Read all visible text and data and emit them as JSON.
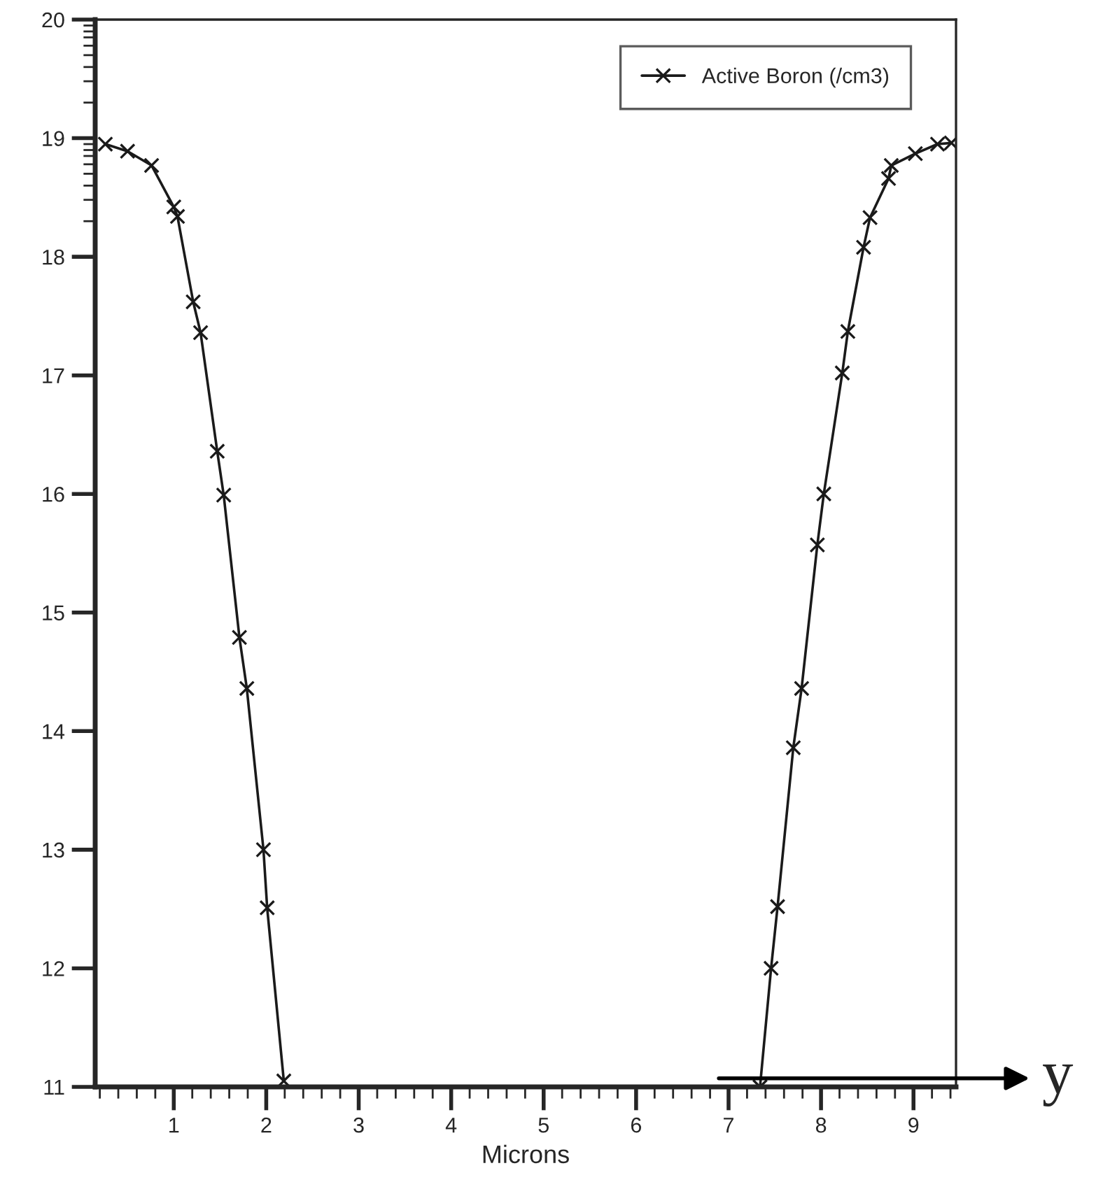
{
  "chart_data": {
    "type": "line",
    "xlabel": "Microns",
    "xlim": [
      0.15,
      9.46
    ],
    "ylim": [
      11,
      20
    ],
    "xticks": [
      {
        "value": 0.2,
        "label": null
      },
      {
        "value": 0.4,
        "label": null
      },
      {
        "value": 0.6,
        "label": null
      },
      {
        "value": 0.8,
        "label": null
      },
      1,
      {
        "value": 1.2,
        "label": null
      },
      {
        "value": 1.4,
        "label": null
      },
      {
        "value": 1.6,
        "label": null
      },
      {
        "value": 1.8,
        "label": null
      },
      2,
      {
        "value": 2.2,
        "label": null
      },
      {
        "value": 2.4,
        "label": null
      },
      {
        "value": 2.6,
        "label": null
      },
      {
        "value": 2.8,
        "label": null
      },
      3,
      {
        "value": 3.2,
        "label": null
      },
      {
        "value": 3.4,
        "label": null
      },
      {
        "value": 3.6,
        "label": null
      },
      {
        "value": 3.8,
        "label": null
      },
      4,
      {
        "value": 4.2,
        "label": null
      },
      {
        "value": 4.4,
        "label": null
      },
      {
        "value": 4.6,
        "label": null
      },
      {
        "value": 4.8,
        "label": null
      },
      5,
      {
        "value": 5.2,
        "label": null
      },
      {
        "value": 5.4,
        "label": null
      },
      {
        "value": 5.6,
        "label": null
      },
      {
        "value": 5.8,
        "label": null
      },
      6,
      {
        "value": 6.2,
        "label": null
      },
      {
        "value": 6.4,
        "label": null
      },
      {
        "value": 6.6,
        "label": null
      },
      {
        "value": 6.8,
        "label": null
      },
      7,
      {
        "value": 7.2,
        "label": null
      },
      {
        "value": 7.4,
        "label": null
      },
      {
        "value": 7.6,
        "label": null
      },
      {
        "value": 7.8,
        "label": null
      },
      8,
      {
        "value": 8.2,
        "label": null
      },
      {
        "value": 8.4,
        "label": null
      },
      {
        "value": 8.6,
        "label": null
      },
      {
        "value": 8.8,
        "label": null
      },
      9,
      {
        "value": 9.2,
        "label": null
      },
      {
        "value": 9.4,
        "label": null
      }
    ],
    "yticks": [
      11,
      12,
      13,
      14,
      15,
      16,
      17,
      18,
      {
        "value": 18.3,
        "label": null
      },
      {
        "value": 18.48,
        "label": null
      },
      {
        "value": 18.6,
        "label": null
      },
      {
        "value": 18.7,
        "label": null
      },
      {
        "value": 18.78,
        "label": null
      },
      {
        "value": 18.85,
        "label": null
      },
      {
        "value": 18.9,
        "label": null
      },
      {
        "value": 18.95,
        "label": null
      },
      19,
      {
        "value": 19.3,
        "label": null
      },
      {
        "value": 19.48,
        "label": null
      },
      {
        "value": 19.6,
        "label": null
      },
      {
        "value": 19.7,
        "label": null
      },
      {
        "value": 19.78,
        "label": null
      },
      {
        "value": 19.85,
        "label": null
      },
      {
        "value": 19.9,
        "label": null
      },
      {
        "value": 19.95,
        "label": null
      },
      20
    ],
    "grid": false,
    "legend": "top right",
    "marker": "cross",
    "line_style": "solid",
    "series": [
      {
        "name": "Active Boron (/cm3)",
        "color": "#1a1a1a",
        "x": [
          0.26,
          0.5,
          0.76,
          1.0,
          1.04,
          1.21,
          1.29,
          1.47,
          1.54,
          1.71,
          1.79,
          1.97,
          2.01,
          2.19,
          4.8,
          7.34,
          7.46,
          7.53,
          7.7,
          7.79,
          7.96,
          8.03,
          8.23,
          8.29,
          8.46,
          8.53,
          8.73,
          8.76,
          9.02,
          9.26,
          9.41
        ],
        "values": [
          18.95,
          18.89,
          18.77,
          18.42,
          18.34,
          17.62,
          17.36,
          16.36,
          15.99,
          14.79,
          14.36,
          13.0,
          12.51,
          11.05,
          null,
          11.0,
          12.0,
          12.52,
          13.86,
          14.36,
          15.57,
          16.0,
          17.02,
          17.37,
          18.08,
          18.33,
          18.66,
          18.77,
          18.87,
          18.95,
          18.96
        ]
      }
    ],
    "annotations": [
      "y"
    ]
  }
}
